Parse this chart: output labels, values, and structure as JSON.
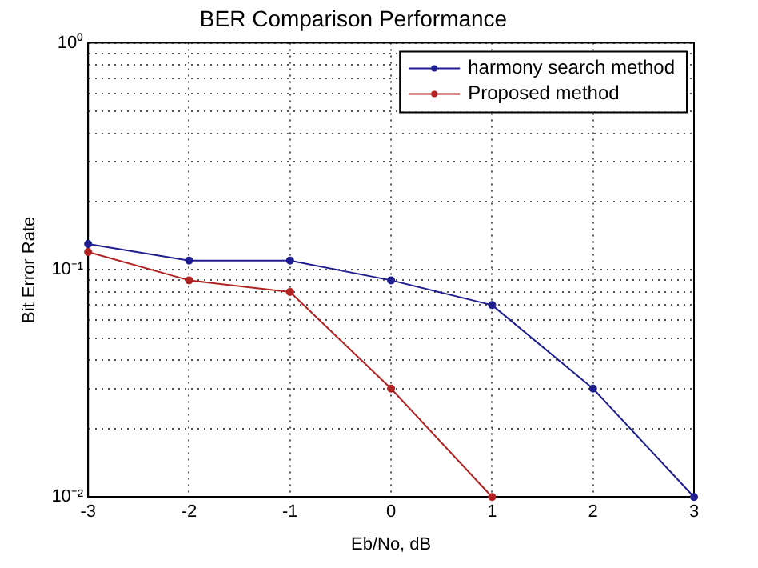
{
  "chart_data": {
    "type": "line",
    "title": "BER Comparison Performance",
    "xlabel": "Eb/No, dB",
    "ylabel": "Bit Error Rate",
    "x": [
      -3,
      -2,
      -1,
      0,
      1,
      2,
      3
    ],
    "series": [
      {
        "name": "harmony search method",
        "color": "#1f1f8f",
        "values": [
          0.13,
          0.11,
          0.11,
          0.09,
          0.07,
          0.03,
          0.01
        ]
      },
      {
        "name": "Proposed method",
        "color": "#b22222",
        "values": [
          0.12,
          0.09,
          0.08,
          0.03,
          0.01,
          null,
          null
        ]
      }
    ],
    "xlim": [
      -3,
      3
    ],
    "xticks": [
      -3,
      -2,
      -1,
      0,
      1,
      2,
      3
    ],
    "ylim": [
      0.01,
      1
    ],
    "yticks": [
      {
        "value": 0.01,
        "label": "10⁻²"
      },
      {
        "value": 0.02,
        "label": null
      },
      {
        "value": 0.03,
        "label": null
      },
      {
        "value": 0.04,
        "label": null
      },
      {
        "value": 0.05,
        "label": null
      },
      {
        "value": 0.06,
        "label": null
      },
      {
        "value": 0.07,
        "label": null
      },
      {
        "value": 0.08,
        "label": null
      },
      {
        "value": 0.09,
        "label": null
      },
      {
        "value": 0.1,
        "label": "10⁻¹"
      },
      {
        "value": 0.2,
        "label": null
      },
      {
        "value": 0.3,
        "label": null
      },
      {
        "value": 0.4,
        "label": null
      },
      {
        "value": 0.5,
        "label": null
      },
      {
        "value": 0.6,
        "label": null
      },
      {
        "value": 0.7,
        "label": null
      },
      {
        "value": 0.8,
        "label": null
      },
      {
        "value": 0.9,
        "label": null
      },
      {
        "value": 1,
        "label": "10⁰"
      }
    ],
    "log": "y",
    "grid": true,
    "legend": "top right",
    "marker": "circle",
    "line_style": "solid"
  }
}
